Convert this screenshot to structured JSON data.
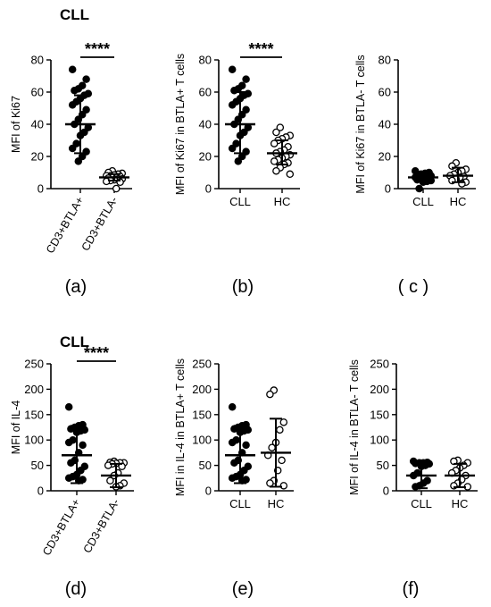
{
  "figure": {
    "panel_labels": [
      "(a)",
      "(b)",
      "( c )",
      "(d)",
      "(e)",
      "(f)"
    ],
    "row_titles": [
      "CLL",
      "CLL"
    ]
  },
  "chart_data": [
    {
      "id": "a",
      "type": "scatter",
      "title": "",
      "ylabel": "MFI of Ki67",
      "ylim": [
        0,
        80
      ],
      "yticks": [
        0,
        20,
        40,
        60,
        80
      ],
      "categories": [
        "CD3+BTLA+",
        "CD3+BTLA-"
      ],
      "tick_rotation": -60,
      "significance": "****",
      "summary": [
        {
          "mean": 40,
          "lower": 22,
          "upper": 58
        },
        {
          "mean": 7,
          "lower": 5,
          "upper": 9
        }
      ],
      "points": [
        {
          "values": [
            74,
            68,
            64,
            62,
            61,
            59,
            58,
            56,
            54,
            52,
            49,
            46,
            43,
            40,
            38,
            35,
            33,
            28,
            25,
            23,
            20,
            17
          ],
          "fill": "#000000"
        },
        {
          "values": [
            11,
            10,
            9.5,
            9,
            8.5,
            8,
            8,
            7.5,
            7,
            7,
            6.5,
            6,
            6,
            5.5,
            5,
            4.5,
            4,
            0
          ],
          "fill": "#ffffff"
        }
      ]
    },
    {
      "id": "b",
      "type": "scatter",
      "title": "",
      "ylabel": "MFI of Ki67 in BTLA+ T cells",
      "ylim": [
        0,
        80
      ],
      "yticks": [
        0,
        20,
        40,
        60,
        80
      ],
      "categories": [
        "CLL",
        "HC"
      ],
      "tick_rotation": 0,
      "significance": "****",
      "summary": [
        {
          "mean": 40,
          "lower": 22,
          "upper": 60
        },
        {
          "mean": 22,
          "lower": 15,
          "upper": 30
        }
      ],
      "points": [
        {
          "values": [
            74,
            68,
            64,
            62,
            61,
            59,
            58,
            56,
            54,
            52,
            49,
            46,
            43,
            40,
            38,
            35,
            33,
            28,
            25,
            23,
            20,
            17
          ],
          "fill": "#000000"
        },
        {
          "values": [
            38,
            35,
            33,
            32,
            31,
            30,
            28,
            26,
            24,
            23,
            22,
            21,
            20,
            19,
            18,
            17,
            16,
            15,
            13,
            11,
            9
          ],
          "fill": "#ffffff"
        }
      ]
    },
    {
      "id": "c",
      "type": "scatter",
      "title": "",
      "ylabel": "MFI of Ki67 in BTLA- T cells",
      "ylim": [
        0,
        80
      ],
      "yticks": [
        0,
        20,
        40,
        60,
        80
      ],
      "categories": [
        "CLL",
        "HC"
      ],
      "tick_rotation": 0,
      "significance": "",
      "summary": [
        {
          "mean": 7,
          "lower": 5,
          "upper": 9
        },
        {
          "mean": 8,
          "lower": 4,
          "upper": 13
        }
      ],
      "points": [
        {
          "values": [
            11,
            10,
            9.5,
            9,
            8.5,
            8,
            8,
            7.5,
            7,
            7,
            6.5,
            6,
            6,
            5.5,
            5,
            4.5,
            4,
            0
          ],
          "fill": "#000000"
        },
        {
          "values": [
            16,
            14,
            12,
            11,
            10,
            9,
            8,
            7.5,
            7,
            6,
            5,
            4,
            3
          ],
          "fill": "#ffffff"
        }
      ]
    },
    {
      "id": "d",
      "type": "scatter",
      "title": "",
      "ylabel": "MFI of IL-4",
      "ylim": [
        0,
        250
      ],
      "yticks": [
        0,
        50,
        100,
        150,
        200,
        250
      ],
      "categories": [
        "CD3+BTLA+",
        "CD3+BTLA-"
      ],
      "tick_rotation": -60,
      "significance": "****",
      "summary": [
        {
          "mean": 70,
          "lower": 15,
          "upper": 128
        },
        {
          "mean": 30,
          "lower": 7,
          "upper": 53
        }
      ],
      "points": [
        {
          "values": [
            165,
            130,
            128,
            125,
            122,
            120,
            118,
            115,
            100,
            95,
            90,
            75,
            60,
            55,
            48,
            40,
            32,
            28,
            25,
            22,
            20
          ],
          "fill": "#000000"
        },
        {
          "values": [
            58,
            56,
            55,
            55,
            54,
            53,
            50,
            48,
            35,
            30,
            20,
            15,
            10,
            8
          ],
          "fill": "#ffffff"
        }
      ]
    },
    {
      "id": "e",
      "type": "scatter",
      "title": "",
      "ylabel": "MFI in IL-4 in BTLA+ T cells",
      "ylim": [
        0,
        250
      ],
      "yticks": [
        0,
        50,
        100,
        150,
        200,
        250
      ],
      "categories": [
        "CLL",
        "HC"
      ],
      "tick_rotation": 0,
      "significance": "",
      "summary": [
        {
          "mean": 70,
          "lower": 15,
          "upper": 128
        },
        {
          "mean": 75,
          "lower": 8,
          "upper": 142
        }
      ],
      "points": [
        {
          "values": [
            165,
            130,
            128,
            125,
            122,
            120,
            118,
            115,
            100,
            95,
            90,
            75,
            60,
            55,
            48,
            40,
            32,
            28,
            25,
            22,
            20
          ],
          "fill": "#000000"
        },
        {
          "values": [
            198,
            190,
            135,
            120,
            95,
            85,
            70,
            60,
            40,
            20,
            15,
            10
          ],
          "fill": "#ffffff"
        }
      ]
    },
    {
      "id": "f",
      "type": "scatter",
      "title": "",
      "ylabel": "MFI of IL-4 in BTLA- T cells",
      "ylim": [
        0,
        250
      ],
      "yticks": [
        0,
        50,
        100,
        150,
        200,
        250
      ],
      "categories": [
        "CLL",
        "HC"
      ],
      "tick_rotation": 0,
      "significance": "",
      "summary": [
        {
          "mean": 30,
          "lower": 5,
          "upper": 55
        },
        {
          "mean": 30,
          "lower": 7,
          "upper": 53
        }
      ],
      "points": [
        {
          "values": [
            58,
            56,
            55,
            55,
            54,
            53,
            50,
            48,
            35,
            30,
            20,
            15,
            10,
            8
          ],
          "fill": "#000000"
        },
        {
          "values": [
            60,
            58,
            55,
            50,
            45,
            40,
            35,
            30,
            22,
            15,
            10,
            8
          ],
          "fill": "#ffffff"
        }
      ]
    }
  ]
}
